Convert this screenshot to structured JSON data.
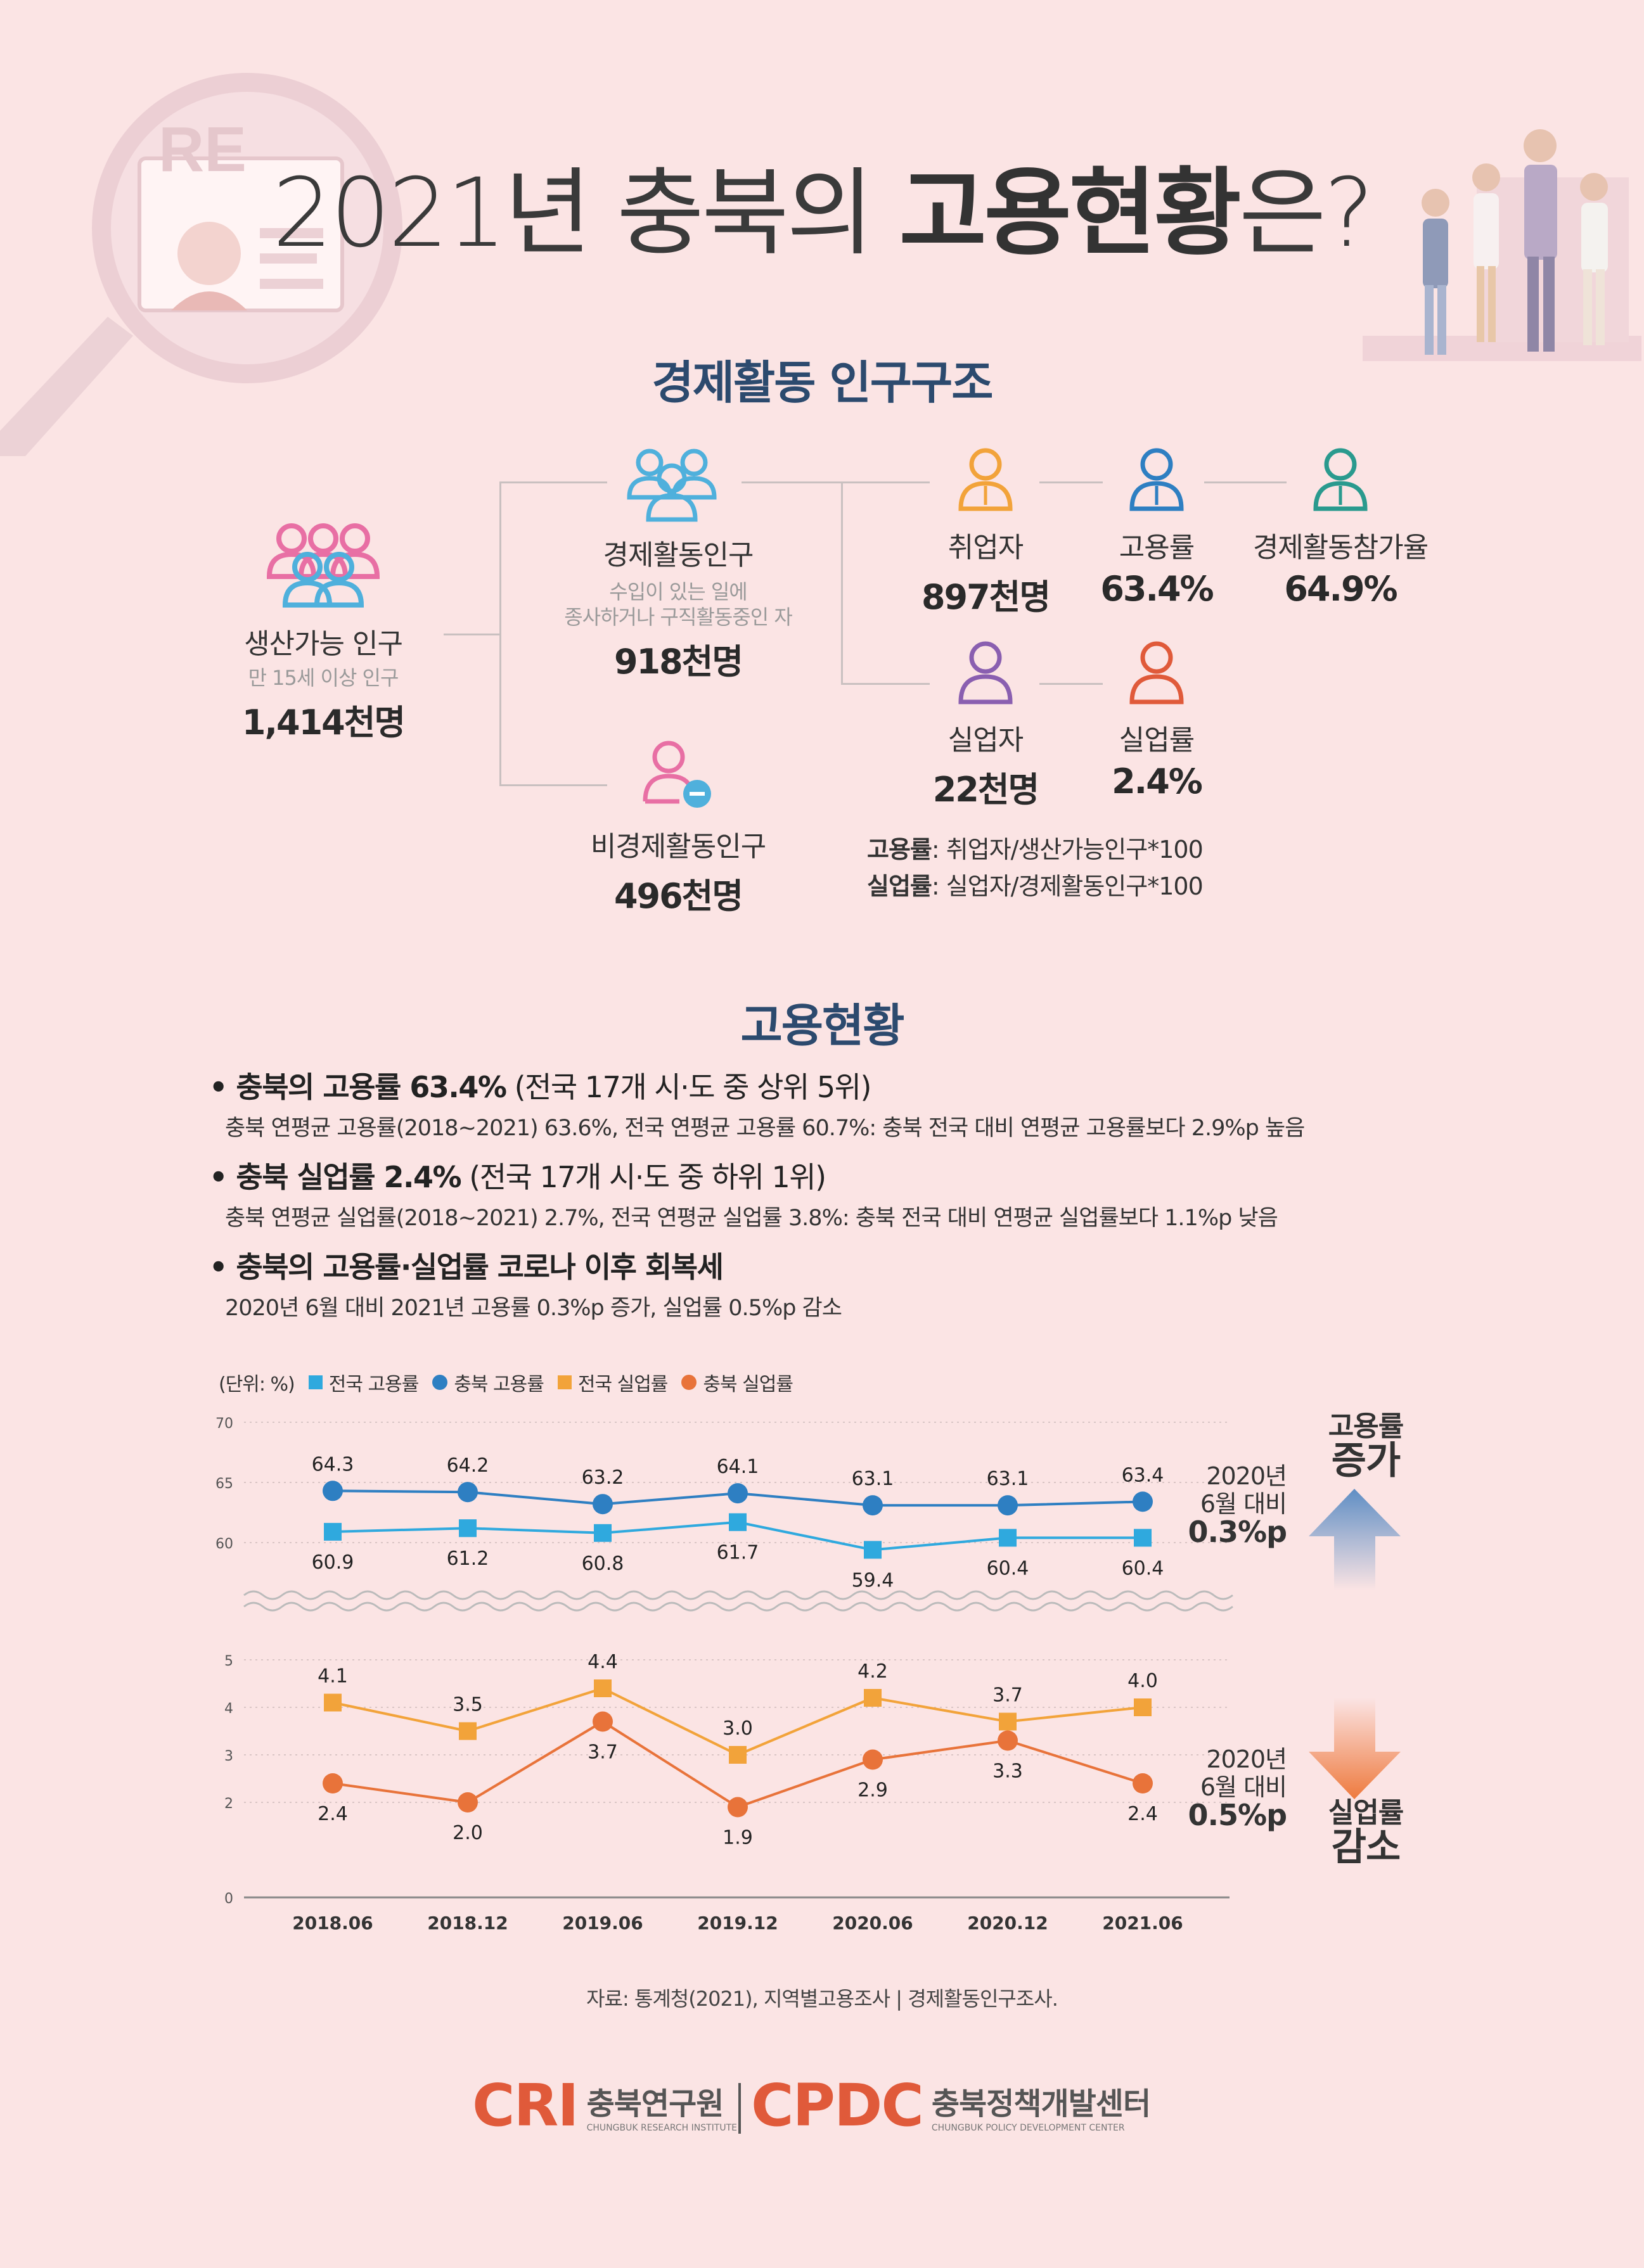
{
  "title": {
    "normal": "2021년 충북의 ",
    "bold": "고용현황",
    "suffix": "은?"
  },
  "section1": {
    "title": "경제활동 인구구조"
  },
  "structure": {
    "working_age": {
      "label": "생산가능 인구",
      "sub": "만 15세 이상 인구",
      "value": "1,414천명"
    },
    "econ_active": {
      "label": "경제활동인구",
      "sub1": "수입이 있는 일에",
      "sub2": "종사하거나 구직활동중인 자",
      "value": "918천명"
    },
    "non_active": {
      "label": "비경제활동인구",
      "value": "496천명"
    },
    "employed": {
      "label": "취업자",
      "value": "897천명"
    },
    "emp_rate": {
      "label": "고용률",
      "value": "63.4%"
    },
    "part_rate": {
      "label": "경제활동참가율",
      "value": "64.9%"
    },
    "unemployed": {
      "label": "실업자",
      "value": "22천명"
    },
    "unemp_rate": {
      "label": "실업률",
      "value": "2.4%"
    },
    "formula1": {
      "key": "고용률",
      "text": ": 취업자/생산가능인구*100"
    },
    "formula2": {
      "key": "실업률",
      "text": ": 실업자/경제활동인구*100"
    }
  },
  "section2": {
    "title": "고용현황"
  },
  "bullets": [
    {
      "main": "충북의 고용률 63.4%",
      "paren": " (전국 17개 시·도 중 상위 5위)",
      "desc": "충북 연평균 고용률(2018~2021) 63.6%, 전국 연평균 고용률 60.7%: 충북 전국 대비 연평균 고용률보다 2.9%p 높음"
    },
    {
      "main": "충북 실업률 2.4%",
      "paren": " (전국 17개 시·도 중 하위 1위)",
      "desc": "충북 연평균 실업률(2018~2021) 2.7%, 전국 연평균 실업률 3.8%: 충북 전국 대비 연평균 실업률보다 1.1%p 낮음"
    },
    {
      "main": "충북의 고용률·실업률 코로나 이후 회복세",
      "paren": "",
      "desc": "2020년 6월 대비 2021년 고용률 0.3%p 증가, 실업률 0.5%p 감소"
    }
  ],
  "legend": {
    "unit": "(단위: %)",
    "items": [
      "전국 고용률",
      "충북 고용률",
      "전국 실업률",
      "충북 실업률"
    ]
  },
  "chart_data": {
    "type": "line",
    "categories": [
      "2018.06",
      "2018.12",
      "2019.06",
      "2019.12",
      "2020.06",
      "2020.12",
      "2021.06"
    ],
    "series": [
      {
        "name": "전국 고용률",
        "values": [
          60.9,
          61.2,
          60.8,
          61.7,
          59.4,
          60.4,
          60.4
        ],
        "color": "#2fa9de",
        "marker": "square"
      },
      {
        "name": "충북 고용률",
        "values": [
          64.3,
          64.2,
          63.2,
          64.1,
          63.1,
          63.1,
          63.4
        ],
        "color": "#2e7fc2",
        "marker": "circle"
      },
      {
        "name": "전국 실업률",
        "values": [
          4.1,
          3.5,
          4.4,
          3.0,
          4.2,
          3.7,
          4.0
        ],
        "color": "#f2a33a",
        "marker": "square"
      },
      {
        "name": "충북 실업률",
        "values": [
          2.4,
          2.0,
          3.7,
          1.9,
          2.9,
          3.3,
          2.4
        ],
        "color": "#e8733a",
        "marker": "circle"
      }
    ],
    "upper_axis": {
      "ylim": [
        60,
        70
      ],
      "ticks": [
        "60",
        "65",
        "70"
      ]
    },
    "lower_axis": {
      "ylim": [
        0,
        5
      ],
      "ticks": [
        "0",
        "2",
        "3",
        "4",
        "5"
      ]
    },
    "axis_break": true
  },
  "side": {
    "up_tag1": "고용률",
    "up_tag2": "증가",
    "up_note1": "2020년",
    "up_note2": "6월 대비",
    "up_note3": "0.3%p",
    "down_note1": "2020년",
    "down_note2": "6월 대비",
    "down_note3": "0.5%p",
    "down_tag1": "실업률",
    "down_tag2": "감소"
  },
  "source": "자료: 통계청(2021), 지역별고용조사 | 경제활동인구조사.",
  "logos": {
    "cri": "CRI",
    "cri_ko": "충북연구원",
    "cri_en": "CHUNGBUK RESEARCH INSTITUTE",
    "cpdc": "CPDC",
    "cpdc_ko": "충북정책개발센터",
    "cpdc_en": "CHUNGBUK POLICY DEVELOPMENT CENTER"
  },
  "decor": {
    "badge_text": "RE"
  },
  "colors": {
    "background": "#fbe4e4",
    "heading": "#2c4a6e",
    "accent": "#e05a3a"
  }
}
